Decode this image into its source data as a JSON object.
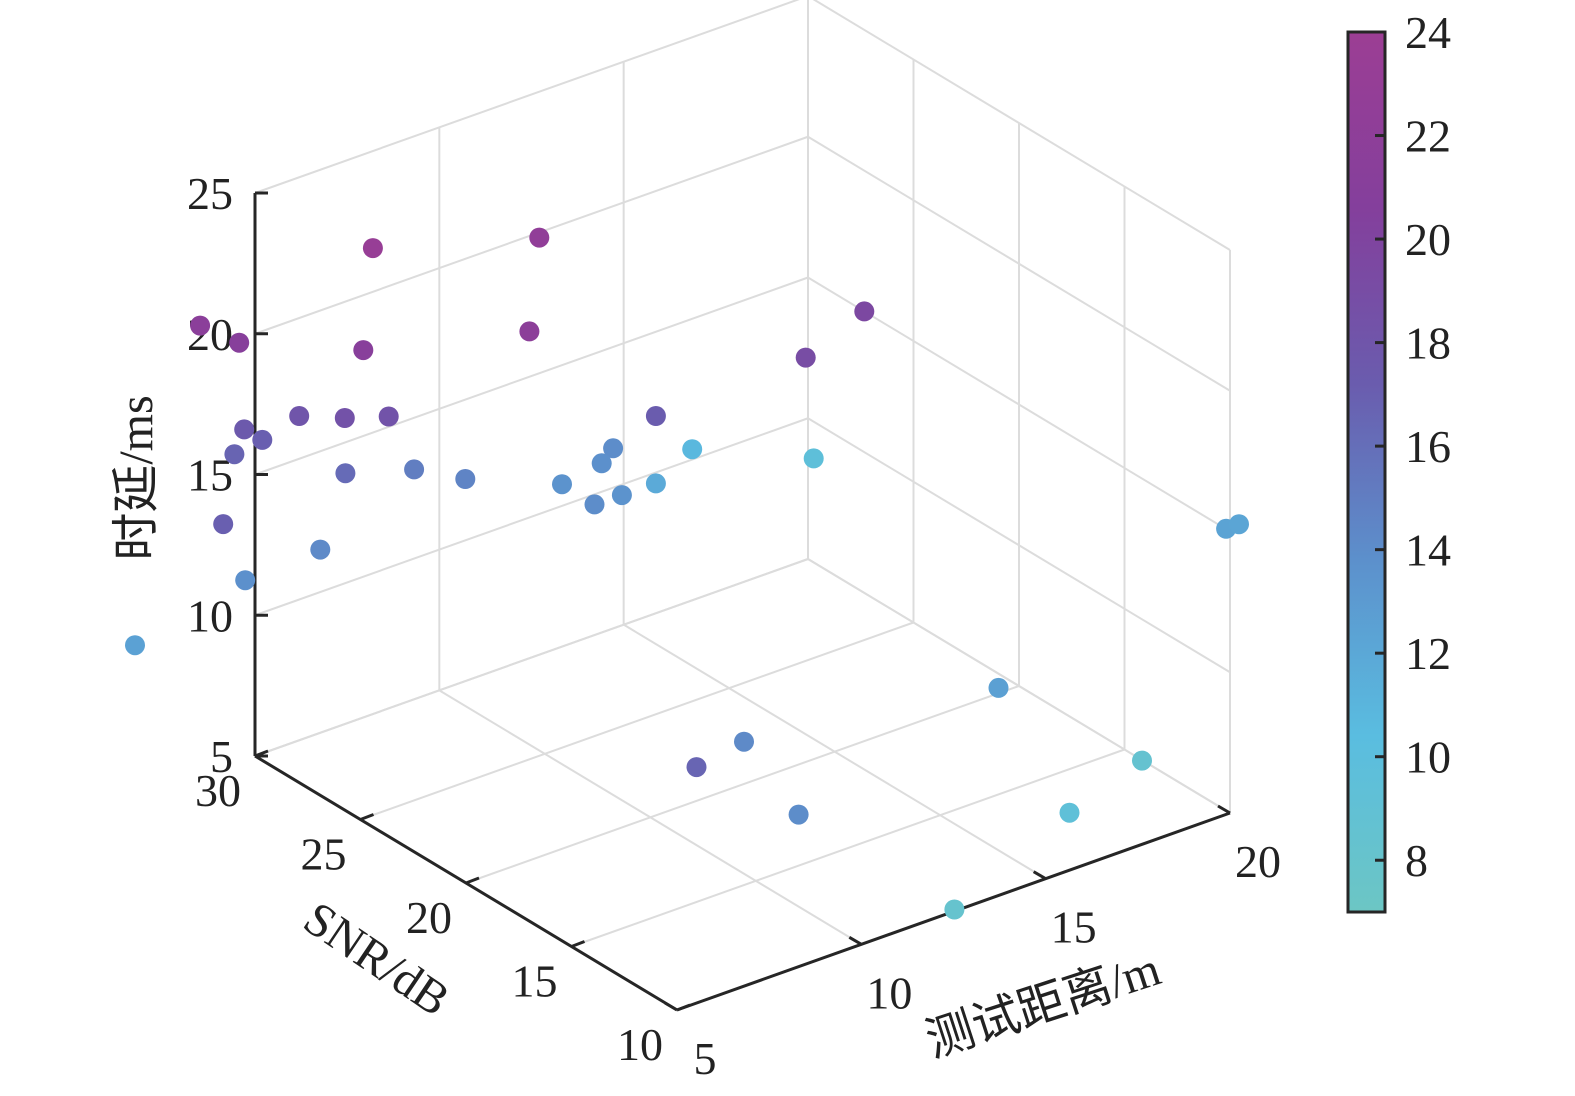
{
  "chart_data": {
    "type": "scatter3d",
    "title": "",
    "xlabel": "测试距离/m",
    "ylabel": "SNR/dB",
    "zlabel": "时延/ms",
    "xlim": [
      5,
      20
    ],
    "ylim": [
      10,
      30
    ],
    "zlim": [
      5,
      25
    ],
    "xticks": [
      "5",
      "10",
      "15",
      "20"
    ],
    "yticks": [
      "10",
      "15",
      "20",
      "25",
      "30"
    ],
    "zticks": [
      "5",
      "10",
      "15",
      "20",
      "25"
    ],
    "grid": true,
    "colorbar": {
      "range": [
        7,
        24
      ],
      "ticks": [
        "8",
        "10",
        "12",
        "14",
        "16",
        "18",
        "20",
        "22",
        "24"
      ],
      "colors": [
        "#6cc6c4",
        "#5abde0",
        "#5c90cc",
        "#6a5cae",
        "#843f9c",
        "#9c3e94"
      ]
    },
    "points": [
      {
        "x": 5.45,
        "y": 25.2,
        "z": 25.0,
        "c": 23.3
      },
      {
        "x": 8.82,
        "y": 23.2,
        "z": 24.7,
        "c": 22.4
      },
      {
        "x": 7.75,
        "y": 21.8,
        "z": 22.5,
        "c": 21.8
      },
      {
        "x": 4.79,
        "y": 24.5,
        "z": 22.0,
        "c": 21.2
      },
      {
        "x": 3.34,
        "y": 29.7,
        "z": 21.2,
        "c": 21.6
      },
      {
        "x": 4.0,
        "y": 29.0,
        "z": 20.6,
        "c": 21.0
      },
      {
        "x": 15.06,
        "y": 18.7,
        "z": 21.2,
        "c": 19.6
      },
      {
        "x": 13.47,
        "y": 18.7,
        "z": 20.3,
        "c": 19.0
      },
      {
        "x": 10.38,
        "y": 20.4,
        "z": 18.9,
        "c": 17.2
      },
      {
        "x": 5.26,
        "y": 26.2,
        "z": 18.6,
        "c": 18.4
      },
      {
        "x": 6.05,
        "y": 25.5,
        "z": 18.6,
        "c": 18.2
      },
      {
        "x": 4.94,
        "y": 27.8,
        "z": 18.1,
        "c": 18.0
      },
      {
        "x": 4.02,
        "y": 28.8,
        "z": 17.6,
        "c": 17.5
      },
      {
        "x": 4.51,
        "y": 28.8,
        "z": 17.0,
        "c": 17.0
      },
      {
        "x": 3.87,
        "y": 29.0,
        "z": 16.7,
        "c": 16.7
      },
      {
        "x": 5.62,
        "y": 26.8,
        "z": 16.2,
        "c": 16.2
      },
      {
        "x": 6.74,
        "y": 25.5,
        "z": 16.4,
        "c": 15.0
      },
      {
        "x": 7.5,
        "y": 24.4,
        "z": 16.2,
        "c": 14.6
      },
      {
        "x": 10.25,
        "y": 22.2,
        "z": 17.0,
        "c": 14.0
      },
      {
        "x": 9.71,
        "y": 21.8,
        "z": 16.9,
        "c": 13.8
      },
      {
        "x": 8.92,
        "y": 22.3,
        "z": 16.3,
        "c": 13.6
      },
      {
        "x": 9.86,
        "y": 22.4,
        "z": 15.1,
        "c": 14.0
      },
      {
        "x": 10.43,
        "y": 22.1,
        "z": 15.3,
        "c": 13.6
      },
      {
        "x": 11.18,
        "y": 21.8,
        "z": 15.5,
        "c": 11.8
      },
      {
        "x": 12.05,
        "y": 21.6,
        "z": 16.4,
        "c": 10.8
      },
      {
        "x": 13.86,
        "y": 19.0,
        "z": 16.4,
        "c": 9.6
      },
      {
        "x": 3.85,
        "y": 29.5,
        "z": 14.0,
        "c": 17.0
      },
      {
        "x": 4.39,
        "y": 29.4,
        "z": 11.8,
        "c": 13.8
      },
      {
        "x": 5.74,
        "y": 28.2,
        "z": 12.8,
        "c": 14.2
      },
      {
        "x": 1.63,
        "y": 29.8,
        "z": 10.6,
        "c": 12.5
      },
      {
        "x": 9.42,
        "y": 16.8,
        "z": 8.5,
        "c": 16.6
      },
      {
        "x": 10.71,
        "y": 16.8,
        "z": 8.8,
        "c": 14.2
      },
      {
        "x": 10.93,
        "y": 14.6,
        "z": 7.1,
        "c": 14.0
      },
      {
        "x": 16.01,
        "y": 14.0,
        "z": 9.5,
        "c": 12.6
      },
      {
        "x": 20.41,
        "y": 10.9,
        "z": 14.5,
        "c": 12.4
      },
      {
        "x": 20.76,
        "y": 10.9,
        "z": 14.5,
        "c": 12.2
      },
      {
        "x": 15.76,
        "y": 10.2,
        "z": 6.9,
        "c": 9.4
      },
      {
        "x": 18.07,
        "y": 10.8,
        "z": 7.4,
        "c": 8.4
      },
      {
        "x": 12.81,
        "y": 10.5,
        "z": 4.7,
        "c": 8.2
      }
    ]
  }
}
